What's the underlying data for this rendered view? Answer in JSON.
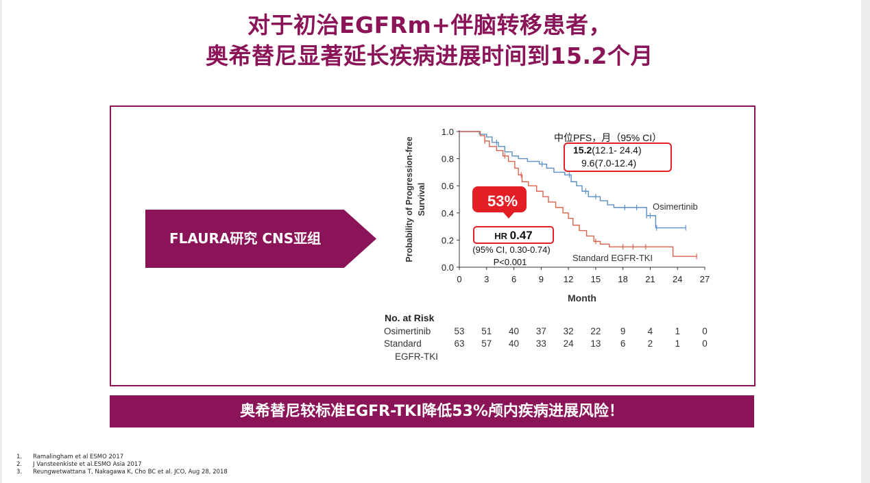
{
  "title_lines": [
    "对于初治EGFRm+伴脑转移患者，",
    "奥希替尼显著延长疾病进展时间到15.2个月"
  ],
  "arrow_label": "FLAURA研究 CNS亚组",
  "banner": "奥希替尼较标准EGFR-TKI降低53%颅内疾病进展风险！",
  "references": [
    {
      "num": "1.",
      "text": "Ramalingham et al ESMO 2017"
    },
    {
      "num": "2.",
      "text": "J Vansteenkiste et al.ESMO Asia 2017"
    },
    {
      "num": "3.",
      "text": "Reungwetwattana T, Nakagawa K, Cho BC et al. JCO, Aug 28, 2018"
    }
  ],
  "colors": {
    "brand": "#8a1457",
    "osimertinib": "#5b8ec5",
    "standard": "#d9634a",
    "highlight": "#e31e24"
  },
  "chart_data": {
    "type": "line",
    "ylabel": "Probability of Progression-free Survival",
    "xlabel": "Month",
    "xlim": [
      0,
      27
    ],
    "ylim": [
      0,
      1.0
    ],
    "x_ticks": [
      0,
      3,
      6,
      9,
      12,
      15,
      18,
      21,
      24,
      27
    ],
    "y_ticks": [
      "0.0",
      "0.2",
      "0.4",
      "0.6",
      "0.8",
      "1.0"
    ],
    "series": [
      {
        "name": "Osimertinib",
        "points": [
          [
            0,
            1.0
          ],
          [
            1.5,
            1.0
          ],
          [
            2.2,
            0.98
          ],
          [
            3.0,
            0.96
          ],
          [
            3.6,
            0.92
          ],
          [
            4.3,
            0.89
          ],
          [
            5.0,
            0.85
          ],
          [
            5.8,
            0.82
          ],
          [
            6.5,
            0.8
          ],
          [
            7.5,
            0.78
          ],
          [
            8.8,
            0.76
          ],
          [
            9.6,
            0.73
          ],
          [
            10.4,
            0.7
          ],
          [
            11.6,
            0.68
          ],
          [
            12.3,
            0.63
          ],
          [
            12.9,
            0.6
          ],
          [
            13.5,
            0.56
          ],
          [
            14.2,
            0.52
          ],
          [
            15.5,
            0.49
          ],
          [
            16.3,
            0.46
          ],
          [
            17.0,
            0.44
          ],
          [
            19.5,
            0.44
          ],
          [
            20.6,
            0.38
          ],
          [
            21.6,
            0.29
          ],
          [
            24.9,
            0.29
          ]
        ],
        "censor_x": [
          4.1,
          9.1,
          12.1,
          13.9,
          15.0,
          18.2,
          19.5,
          20.6,
          21.0,
          21.7,
          24.9
        ]
      },
      {
        "name": "Standard EGFR-TKI",
        "points": [
          [
            0,
            1.0
          ],
          [
            1.3,
            1.0
          ],
          [
            2.3,
            0.97
          ],
          [
            2.8,
            0.93
          ],
          [
            3.3,
            0.89
          ],
          [
            4.1,
            0.86
          ],
          [
            4.8,
            0.82
          ],
          [
            5.4,
            0.78
          ],
          [
            6.1,
            0.73
          ],
          [
            6.5,
            0.68
          ],
          [
            6.9,
            0.63
          ],
          [
            7.6,
            0.6
          ],
          [
            8.5,
            0.56
          ],
          [
            9.2,
            0.52
          ],
          [
            9.8,
            0.48
          ],
          [
            10.6,
            0.44
          ],
          [
            11.4,
            0.4
          ],
          [
            12.0,
            0.36
          ],
          [
            12.5,
            0.31
          ],
          [
            13.2,
            0.27
          ],
          [
            14.0,
            0.23
          ],
          [
            14.8,
            0.19
          ],
          [
            15.5,
            0.17
          ],
          [
            16.5,
            0.15
          ],
          [
            23.0,
            0.15
          ],
          [
            23.5,
            0.08
          ],
          [
            26.1,
            0.08
          ]
        ],
        "censor_x": [
          2.8,
          5.0,
          6.8,
          15.0,
          18.0,
          19.1,
          20.5,
          26.1
        ]
      }
    ],
    "series_labels": [
      "Osimertinib",
      "Standard EGFR-TKI"
    ],
    "median_box": {
      "header": "中位PFS，月（95% CI）",
      "line1_bold": "15.2",
      "line1_rest": "(12.1- 24.4)",
      "line2": "9.6(7.0-12.4)"
    },
    "callout": "53%",
    "hr": {
      "label": "HR",
      "value": "0.47",
      "ci": "(95% CI, 0.30-0.74)",
      "p": "P<0.001"
    },
    "at_risk": {
      "title": "No. at Risk",
      "rows": [
        {
          "label_lines": [
            "Osimertinib"
          ],
          "values": [
            53,
            51,
            40,
            37,
            32,
            22,
            9,
            4,
            1,
            0
          ]
        },
        {
          "label_lines": [
            "Standard",
            "EGFR-TKI"
          ],
          "values": [
            63,
            57,
            40,
            33,
            24,
            13,
            6,
            2,
            1,
            0
          ]
        }
      ]
    }
  }
}
